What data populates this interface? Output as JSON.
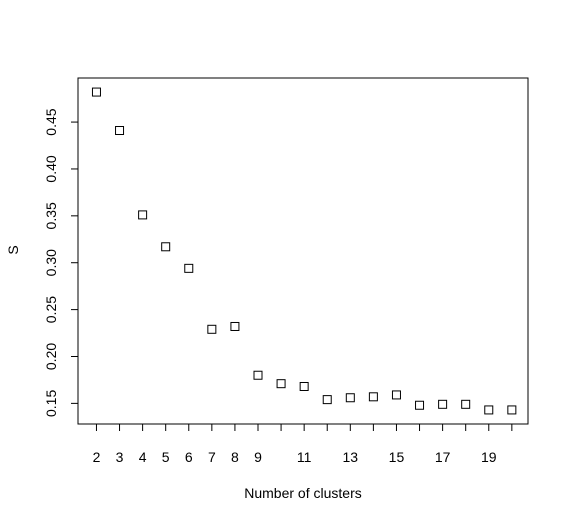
{
  "chart_data": {
    "type": "scatter",
    "title": "",
    "xlabel": "Number of clusters",
    "ylabel": "S",
    "marker": "open-square",
    "x": [
      2,
      3,
      4,
      5,
      6,
      7,
      8,
      9,
      10,
      11,
      12,
      13,
      14,
      15,
      16,
      17,
      18,
      19,
      20
    ],
    "y": [
      0.482,
      0.441,
      0.351,
      0.317,
      0.294,
      0.229,
      0.232,
      0.18,
      0.171,
      0.168,
      0.154,
      0.156,
      0.157,
      0.159,
      0.148,
      0.149,
      0.149,
      0.143,
      0.143
    ],
    "x_ticks": [
      2,
      3,
      4,
      5,
      6,
      7,
      8,
      9,
      10,
      11,
      12,
      13,
      14,
      15,
      16,
      17,
      18,
      19,
      20
    ],
    "x_tick_labels": [
      "2",
      "3",
      "4",
      "5",
      "6",
      "7",
      "8",
      "9",
      "",
      "11",
      "",
      "13",
      "",
      "15",
      "",
      "17",
      "",
      "19",
      ""
    ],
    "y_ticks": [
      0.15,
      0.2,
      0.25,
      0.3,
      0.35,
      0.4,
      0.45
    ],
    "y_tick_labels": [
      "0.15",
      "0.20",
      "0.25",
      "0.30",
      "0.35",
      "0.40",
      "0.45"
    ],
    "xlim": [
      1.2,
      20.7
    ],
    "ylim": [
      0.128,
      0.497
    ],
    "grid": false,
    "legend": "none"
  }
}
